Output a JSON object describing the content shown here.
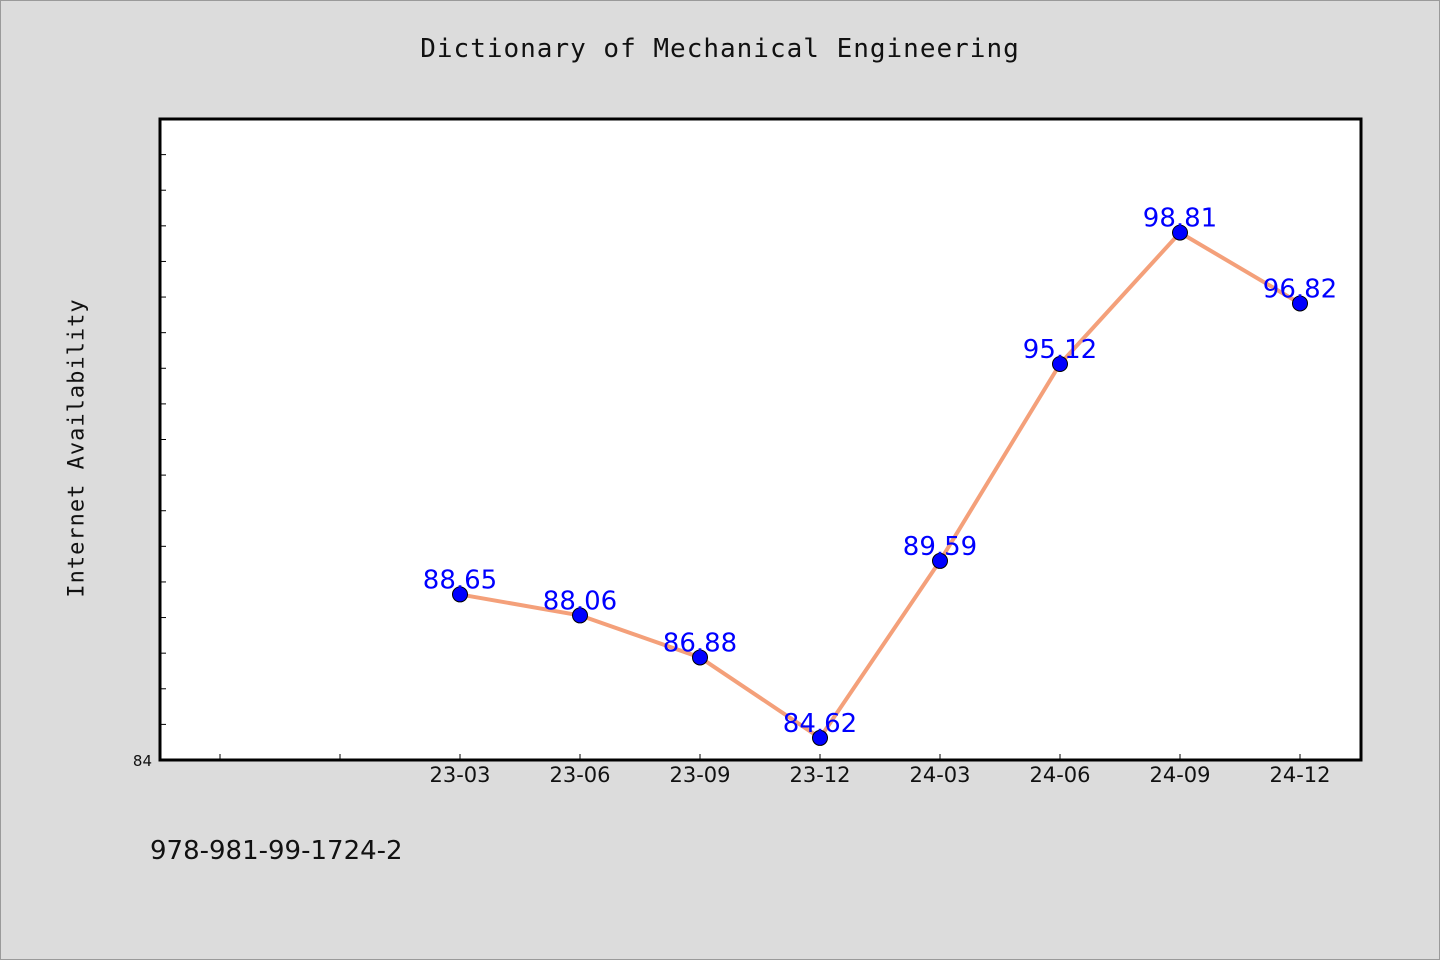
{
  "chart_data": {
    "type": "line",
    "title": "Dictionary of Mechanical Engineering",
    "ylabel": "Internet Availability",
    "xlabel": "",
    "categories": [
      "23-03",
      "23-06",
      "23-09",
      "23-12",
      "24-03",
      "24-06",
      "24-09",
      "24-12"
    ],
    "series": [
      {
        "values": [
          88.65,
          88.06,
          86.88,
          84.62,
          89.59,
          95.12,
          98.81,
          96.82
        ],
        "labels": [
          "88.65",
          "88.06",
          "86.88",
          "84.62",
          "89.59",
          "95.12",
          "98.81",
          "96.82"
        ]
      }
    ],
    "ylim": [
      84,
      102
    ],
    "y_tick_labels": [
      "84"
    ],
    "grid": false,
    "line_color": "#f4a07a",
    "marker_color": "#0000ff",
    "label_color": "#0000ff"
  },
  "footer": {
    "isbn": "978-981-99-1724-2"
  }
}
